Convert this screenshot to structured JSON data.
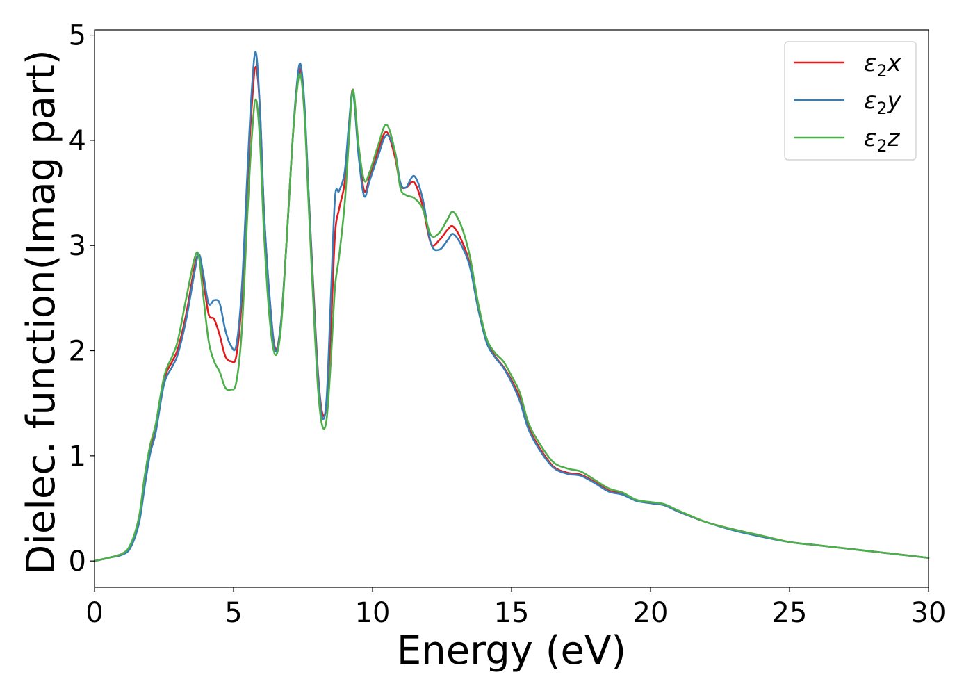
{
  "chart_data": {
    "type": "line",
    "title": "",
    "xlabel": "Energy (eV)",
    "ylabel": "Dielec. function(Imag part)",
    "xlim": [
      0,
      30
    ],
    "ylim": [
      -0.25,
      5.05
    ],
    "xticks": [
      0,
      5,
      10,
      15,
      20,
      25,
      30
    ],
    "yticks": [
      0,
      1,
      2,
      3,
      4,
      5
    ],
    "grid": false,
    "legend_position": "top-right",
    "series": [
      {
        "name": "ε₂x",
        "legend_base": "ε",
        "legend_sub": "2",
        "legend_suffix": "x",
        "color": "#e41a1c",
        "x": [
          0,
          0.5,
          1,
          1.3,
          1.6,
          1.8,
          2,
          2.2,
          2.5,
          2.8,
          3,
          3.3,
          3.6,
          3.75,
          3.9,
          4.1,
          4.3,
          4.5,
          4.7,
          4.9,
          5.1,
          5.3,
          5.5,
          5.65,
          5.8,
          5.95,
          6.1,
          6.3,
          6.5,
          6.7,
          6.9,
          7.1,
          7.25,
          7.4,
          7.55,
          7.7,
          7.9,
          8.05,
          8.2,
          8.35,
          8.5,
          8.65,
          8.8,
          9,
          9.15,
          9.3,
          9.5,
          9.7,
          9.9,
          10.2,
          10.5,
          10.8,
          11,
          11.2,
          11.5,
          11.8,
          12.1,
          12.4,
          12.7,
          12.9,
          13.2,
          13.5,
          13.8,
          14.1,
          14.4,
          14.7,
          15,
          15.3,
          15.6,
          16,
          16.5,
          17,
          17.5,
          18,
          18.5,
          19,
          19.5,
          20,
          20.5,
          21,
          22,
          23,
          24,
          25,
          26,
          27,
          28,
          29,
          30
        ],
        "y": [
          0,
          0.03,
          0.07,
          0.15,
          0.4,
          0.75,
          1.05,
          1.25,
          1.72,
          1.9,
          2.02,
          2.35,
          2.8,
          2.9,
          2.7,
          2.35,
          2.3,
          2.15,
          1.95,
          1.9,
          1.95,
          2.5,
          3.6,
          4.3,
          4.7,
          4.3,
          3.3,
          2.5,
          2.02,
          2.25,
          3.0,
          3.9,
          4.4,
          4.68,
          4.3,
          3.5,
          2.45,
          1.75,
          1.4,
          1.5,
          2.2,
          3.1,
          3.35,
          3.6,
          4.1,
          4.48,
          3.9,
          3.52,
          3.65,
          3.9,
          4.08,
          3.85,
          3.58,
          3.55,
          3.6,
          3.38,
          3.02,
          3.05,
          3.15,
          3.18,
          3.05,
          2.82,
          2.4,
          2.1,
          1.95,
          1.85,
          1.72,
          1.55,
          1.28,
          1.08,
          0.9,
          0.84,
          0.82,
          0.75,
          0.67,
          0.64,
          0.58,
          0.55,
          0.53,
          0.47,
          0.37,
          0.3,
          0.24,
          0.18,
          0.15,
          0.12,
          0.09,
          0.06,
          0.03
        ]
      },
      {
        "name": "ε₂y",
        "legend_base": "ε",
        "legend_sub": "2",
        "legend_suffix": "y",
        "color": "#377eb8",
        "x": [
          0,
          0.5,
          1,
          1.3,
          1.6,
          1.8,
          2,
          2.2,
          2.5,
          2.8,
          3,
          3.3,
          3.6,
          3.75,
          3.9,
          4.1,
          4.3,
          4.5,
          4.7,
          4.9,
          5.1,
          5.3,
          5.5,
          5.65,
          5.8,
          5.95,
          6.1,
          6.3,
          6.5,
          6.7,
          6.9,
          7.1,
          7.25,
          7.4,
          7.55,
          7.7,
          7.9,
          8.05,
          8.2,
          8.35,
          8.5,
          8.65,
          8.8,
          9,
          9.15,
          9.3,
          9.5,
          9.7,
          9.9,
          10.2,
          10.5,
          10.8,
          11,
          11.2,
          11.5,
          11.8,
          12.1,
          12.4,
          12.7,
          12.9,
          13.2,
          13.5,
          13.8,
          14.1,
          14.4,
          14.7,
          15,
          15.3,
          15.6,
          16,
          16.5,
          17,
          17.5,
          18,
          18.5,
          19,
          19.5,
          20,
          20.5,
          21,
          22,
          23,
          24,
          25,
          26,
          27,
          28,
          29,
          30
        ],
        "y": [
          0,
          0.03,
          0.06,
          0.13,
          0.36,
          0.7,
          1.02,
          1.22,
          1.68,
          1.85,
          1.97,
          2.3,
          2.75,
          2.92,
          2.75,
          2.45,
          2.48,
          2.45,
          2.2,
          2.05,
          2.05,
          2.6,
          3.7,
          4.45,
          4.84,
          4.3,
          3.3,
          2.5,
          2.0,
          2.25,
          3.0,
          3.9,
          4.45,
          4.73,
          4.35,
          3.5,
          2.4,
          1.72,
          1.36,
          1.55,
          2.5,
          3.45,
          3.52,
          3.7,
          4.15,
          4.46,
          3.85,
          3.47,
          3.62,
          3.85,
          4.05,
          3.9,
          3.6,
          3.55,
          3.66,
          3.45,
          3.02,
          2.96,
          3.05,
          3.11,
          3.0,
          2.8,
          2.4,
          2.08,
          1.94,
          1.84,
          1.7,
          1.52,
          1.26,
          1.06,
          0.89,
          0.83,
          0.81,
          0.74,
          0.66,
          0.63,
          0.57,
          0.55,
          0.53,
          0.47,
          0.37,
          0.29,
          0.23,
          0.18,
          0.15,
          0.12,
          0.09,
          0.06,
          0.03
        ]
      },
      {
        "name": "ε₂z",
        "legend_base": "ε",
        "legend_sub": "2",
        "legend_suffix": "z",
        "color": "#4daf4a",
        "x": [
          0,
          0.5,
          1,
          1.3,
          1.6,
          1.8,
          2,
          2.2,
          2.5,
          2.8,
          3,
          3.3,
          3.6,
          3.75,
          3.9,
          4.1,
          4.3,
          4.5,
          4.7,
          4.9,
          5.1,
          5.3,
          5.5,
          5.65,
          5.8,
          5.95,
          6.1,
          6.3,
          6.5,
          6.7,
          6.9,
          7.1,
          7.25,
          7.4,
          7.55,
          7.7,
          7.9,
          8.05,
          8.2,
          8.35,
          8.5,
          8.65,
          8.8,
          9,
          9.15,
          9.3,
          9.5,
          9.7,
          9.9,
          10.2,
          10.5,
          10.8,
          11,
          11.2,
          11.5,
          11.8,
          12.1,
          12.4,
          12.7,
          12.9,
          13.2,
          13.5,
          13.8,
          14.1,
          14.4,
          14.7,
          15,
          15.3,
          15.6,
          16,
          16.5,
          17,
          17.5,
          18,
          18.5,
          19,
          19.5,
          20,
          20.5,
          21,
          22,
          23,
          24,
          25,
          26,
          27,
          28,
          29,
          30
        ],
        "y": [
          0,
          0.03,
          0.07,
          0.16,
          0.42,
          0.8,
          1.1,
          1.3,
          1.75,
          1.95,
          2.1,
          2.5,
          2.88,
          2.9,
          2.55,
          2.1,
          1.9,
          1.8,
          1.65,
          1.63,
          1.7,
          2.2,
          3.3,
          4.0,
          4.39,
          4.0,
          3.1,
          2.3,
          1.96,
          2.2,
          3.0,
          3.9,
          4.4,
          4.63,
          4.25,
          3.4,
          2.3,
          1.6,
          1.28,
          1.35,
          1.9,
          2.6,
          2.9,
          3.4,
          4.0,
          4.48,
          3.95,
          3.62,
          3.7,
          3.95,
          4.15,
          3.9,
          3.55,
          3.48,
          3.45,
          3.35,
          3.1,
          3.12,
          3.25,
          3.32,
          3.18,
          2.9,
          2.45,
          2.12,
          1.98,
          1.9,
          1.76,
          1.6,
          1.32,
          1.12,
          0.94,
          0.88,
          0.85,
          0.77,
          0.69,
          0.65,
          0.58,
          0.56,
          0.54,
          0.48,
          0.37,
          0.3,
          0.24,
          0.18,
          0.15,
          0.12,
          0.09,
          0.06,
          0.03
        ]
      }
    ]
  }
}
